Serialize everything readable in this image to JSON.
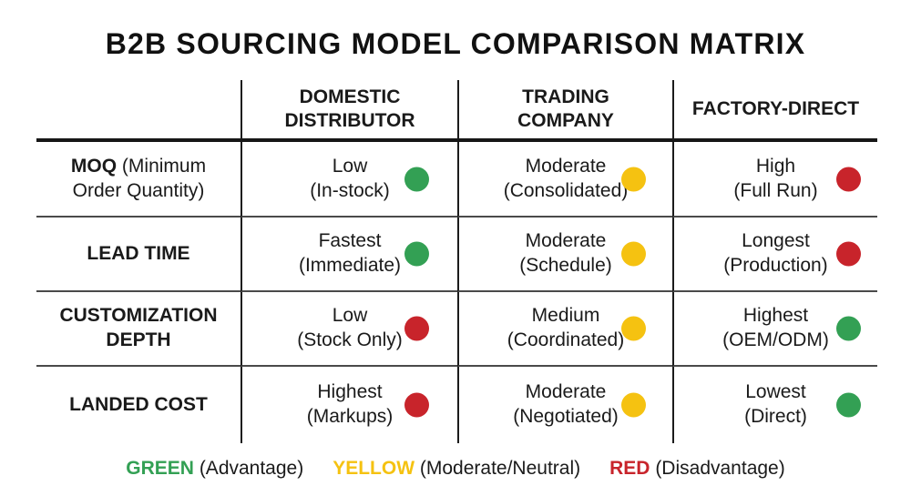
{
  "title": "B2B SOURCING MODEL COMPARISON MATRIX",
  "colors": {
    "green": "#33a054",
    "yellow": "#f5c211",
    "red": "#c8242b"
  },
  "columns": [
    {
      "line1": "DOMESTIC",
      "line2": "DISTRIBUTOR"
    },
    {
      "line1": "TRADING",
      "line2": "COMPANY"
    },
    {
      "line1": "FACTORY-DIRECT",
      "line2": ""
    }
  ],
  "rows": [
    {
      "label_strong": "MOQ",
      "label_rest": " (Minimum Order Quantity)",
      "cells": [
        {
          "value": "Low",
          "detail": "(In-stock)",
          "status": "green"
        },
        {
          "value": "Moderate",
          "detail": "(Consolidated)",
          "status": "yellow"
        },
        {
          "value": "High",
          "detail": "(Full Run)",
          "status": "red"
        }
      ]
    },
    {
      "label_strong": "LEAD TIME",
      "label_rest": "",
      "cells": [
        {
          "value": "Fastest",
          "detail": "(Immediate)",
          "status": "green"
        },
        {
          "value": "Moderate",
          "detail": "(Schedule)",
          "status": "yellow"
        },
        {
          "value": "Longest",
          "detail": "(Production)",
          "status": "red"
        }
      ]
    },
    {
      "label_strong": "CUSTOMIZATION DEPTH",
      "label_rest": "",
      "cells": [
        {
          "value": "Low",
          "detail": "(Stock Only)",
          "status": "red"
        },
        {
          "value": "Medium",
          "detail": "(Coordinated)",
          "status": "yellow"
        },
        {
          "value": "Highest",
          "detail": "(OEM/ODM)",
          "status": "green"
        }
      ]
    },
    {
      "label_strong": "LANDED COST",
      "label_rest": "",
      "cells": [
        {
          "value": "Highest",
          "detail": "(Markups)",
          "status": "red"
        },
        {
          "value": "Moderate",
          "detail": "(Negotiated)",
          "status": "yellow"
        },
        {
          "value": "Lowest",
          "detail": "(Direct)",
          "status": "green"
        }
      ]
    }
  ],
  "legend": [
    {
      "term": "GREEN",
      "desc": "(Advantage)",
      "status": "green"
    },
    {
      "term": "YELLOW",
      "desc": "(Moderate/Neutral)",
      "status": "yellow"
    },
    {
      "term": "RED",
      "desc": "(Disadvantage)",
      "status": "red"
    }
  ]
}
